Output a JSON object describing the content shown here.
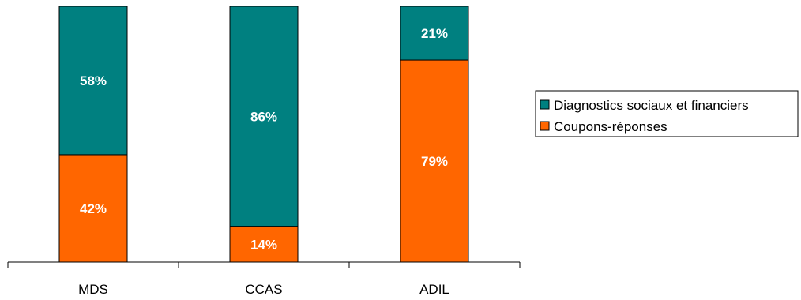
{
  "chart_data": {
    "type": "bar",
    "stacked": true,
    "percent": true,
    "categories": [
      "MDS",
      "CCAS",
      "ADIL"
    ],
    "series": [
      {
        "name": "Coupons-réponses",
        "values": [
          42,
          14,
          79
        ],
        "labels": [
          "42%",
          "14%",
          "79%"
        ],
        "color": "#FF6600"
      },
      {
        "name": "Diagnostics sociaux et financiers",
        "values": [
          58,
          86,
          21
        ],
        "labels": [
          "58%",
          "86%",
          "21%"
        ],
        "color": "#008080"
      }
    ],
    "ylim": [
      0,
      100
    ],
    "grid": false,
    "legend_position": "right",
    "legend_order": [
      "Diagnostics sociaux et financiers",
      "Coupons-réponses"
    ]
  }
}
